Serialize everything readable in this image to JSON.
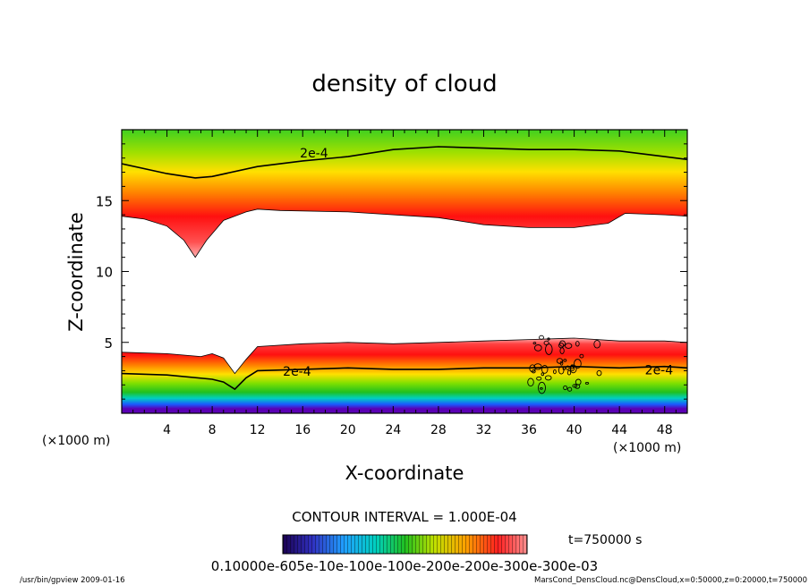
{
  "chart_data": {
    "type": "heatmap",
    "title": "density of cloud",
    "xlabel": "X-coordinate",
    "ylabel": "Z-coordinate",
    "x_unit": "(×1000 m)",
    "y_unit": "(×1000 m)",
    "xlim": [
      0,
      50
    ],
    "ylim": [
      0,
      20
    ],
    "x_ticks": [
      4,
      8,
      12,
      16,
      20,
      24,
      28,
      32,
      36,
      40,
      44,
      48
    ],
    "y_ticks": [
      5,
      10,
      15
    ],
    "contour_labels": [
      "2e-4",
      "2e-4",
      "2e-4"
    ],
    "upper_contour_2e4": {
      "x": [
        0,
        4,
        6.5,
        8,
        12,
        16,
        20,
        24,
        28,
        32,
        36,
        40,
        44,
        48,
        50
      ],
      "z": [
        17.6,
        16.9,
        16.6,
        16.7,
        17.4,
        17.8,
        18.1,
        18.6,
        18.8,
        18.7,
        18.6,
        18.6,
        18.5,
        18.1,
        17.9
      ]
    },
    "upper_cloud_base": {
      "x": [
        0,
        2,
        4,
        5.5,
        6.5,
        7.5,
        9,
        11,
        12,
        14,
        20,
        28,
        32,
        36,
        40,
        43,
        44.5,
        48,
        50
      ],
      "z": [
        13.9,
        13.7,
        13.2,
        12.2,
        11.0,
        12.2,
        13.6,
        14.2,
        14.4,
        14.3,
        14.2,
        13.8,
        13.3,
        13.1,
        13.1,
        13.4,
        14.1,
        14.0,
        13.9
      ]
    },
    "lower_cloud_top": {
      "x": [
        0,
        4,
        7,
        8,
        9,
        10,
        11,
        12,
        16,
        20,
        24,
        28,
        32,
        36,
        40,
        44,
        48,
        50
      ],
      "z": [
        4.3,
        4.2,
        4.0,
        4.2,
        3.9,
        2.8,
        3.8,
        4.7,
        4.9,
        5.0,
        4.9,
        5.0,
        5.1,
        5.2,
        5.3,
        5.1,
        5.1,
        5.0
      ]
    },
    "lower_contour_2e4": {
      "x": [
        0,
        4,
        8,
        9,
        10,
        11,
        12,
        16,
        20,
        24,
        28,
        32,
        36,
        40,
        44,
        48,
        50
      ],
      "z": [
        2.8,
        2.7,
        2.4,
        2.2,
        1.7,
        2.5,
        3.0,
        3.1,
        3.2,
        3.1,
        3.1,
        3.2,
        3.2,
        3.3,
        3.2,
        3.3,
        3.2
      ]
    },
    "colorbar": {
      "min": 0.0001,
      "max": 0.0007,
      "tick_labels_text": "0.10000e-605e-10e-100e-100e-200e-200e-300e-300e-03"
    }
  },
  "annotations": {
    "contour_interval": "CONTOUR INTERVAL = 1.000E-04",
    "time": "t=750000  s",
    "footer_left": "/usr/bin/gpview  2009-01-16",
    "footer_right": "MarsCond_DensCloud.nc@DensCloud,x=0:50000,z=0:20000,t=750000"
  },
  "colors": {
    "low": "#5a00b4",
    "mid_blue": "#1a5aff",
    "mid_cyan": "#00d0d0",
    "mid_green": "#20c020",
    "bright_green": "#80e000",
    "yellow": "#ffe000",
    "orange": "#ff8000",
    "high_red": "#ff1010",
    "pink": "#ff9090"
  }
}
